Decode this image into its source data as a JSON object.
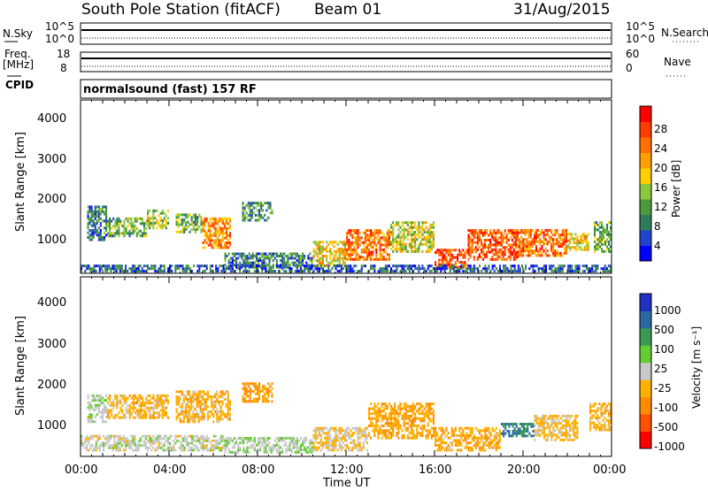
{
  "header": {
    "station": "South Pole Station (fitACF)",
    "beam": "Beam 01",
    "date": "31/Aug/2015"
  },
  "top_panels": {
    "nsky_label": "N.Sky",
    "nsky_ticks": [
      "10^5",
      "10^0"
    ],
    "nsearch_label": "N.Search",
    "nsearch_ticks": [
      "10^5",
      "10^0"
    ],
    "freq_label_1": "Freq.",
    "freq_label_2": "[MHz]",
    "freq_ticks": [
      "18",
      "8"
    ],
    "nave_label": "Nave",
    "nave_ticks": [
      "60",
      "0"
    ],
    "cpid_label": "CPID",
    "cpid_text": "normalsound (fast) 157 RF"
  },
  "chart_data": [
    {
      "type": "heatmap",
      "name": "power",
      "xlabel": "Time UT",
      "ylabel": "Slant Range [km]",
      "yticks": [
        "4000",
        "3000",
        "2000",
        "1000"
      ],
      "ylim": [
        180,
        4600
      ],
      "colorbar": {
        "label": "Power [dB]",
        "ticks": [
          "28",
          "24",
          "20",
          "16",
          "12",
          "8",
          "4"
        ],
        "range": [
          0,
          32
        ],
        "colors": [
          "#0000ff",
          "#2244cc",
          "#2e7d5a",
          "#4b9a3c",
          "#8cc83c",
          "#ffd000",
          "#ffa000",
          "#ff7000",
          "#ff3c00",
          "#ff0000"
        ]
      },
      "regions": [
        {
          "t0": 0.3,
          "t1": 1.2,
          "r0": 1000,
          "r1": 1900,
          "v": 8
        },
        {
          "t0": 1.2,
          "t1": 3.0,
          "r0": 1100,
          "r1": 1600,
          "v": 12
        },
        {
          "t0": 3.0,
          "t1": 4.0,
          "r0": 1300,
          "r1": 1800,
          "v": 14
        },
        {
          "t0": 4.3,
          "t1": 5.5,
          "r0": 1200,
          "r1": 1700,
          "v": 12
        },
        {
          "t0": 5.5,
          "t1": 6.8,
          "r0": 800,
          "r1": 1600,
          "v": 22
        },
        {
          "t0": 7.3,
          "t1": 8.7,
          "r0": 1500,
          "r1": 2000,
          "v": 10
        },
        {
          "t0": 6.5,
          "t1": 10.5,
          "r0": 300,
          "r1": 700,
          "v": 8
        },
        {
          "t0": 10.5,
          "t1": 12.0,
          "r0": 350,
          "r1": 1000,
          "v": 18
        },
        {
          "t0": 12.0,
          "t1": 14.0,
          "r0": 500,
          "r1": 1300,
          "v": 24
        },
        {
          "t0": 14.0,
          "t1": 16.0,
          "r0": 700,
          "r1": 1500,
          "v": 16
        },
        {
          "t0": 16.0,
          "t1": 17.5,
          "r0": 300,
          "r1": 800,
          "v": 26
        },
        {
          "t0": 17.5,
          "t1": 19.8,
          "r0": 500,
          "r1": 1300,
          "v": 26
        },
        {
          "t0": 19.8,
          "t1": 22.0,
          "r0": 600,
          "r1": 1300,
          "v": 24
        },
        {
          "t0": 22.0,
          "t1": 23.0,
          "r0": 750,
          "r1": 1200,
          "v": 18
        },
        {
          "t0": 23.2,
          "t1": 24.0,
          "r0": 700,
          "r1": 1500,
          "v": 12
        },
        {
          "t0": 0.0,
          "t1": 24.0,
          "r0": 200,
          "r1": 400,
          "v": 6
        }
      ]
    },
    {
      "type": "heatmap",
      "name": "velocity",
      "xlabel": "Time UT",
      "ylabel": "Slant Range [km]",
      "yticks": [
        "4000",
        "3000",
        "2000",
        "1000"
      ],
      "ylim": [
        180,
        4600
      ],
      "xticks": [
        "00:00",
        "04:00",
        "08:00",
        "12:00",
        "16:00",
        "20:00",
        "00:00"
      ],
      "colorbar": {
        "label": "Velocity [m s⁻¹]",
        "ticks": [
          "1000",
          "500",
          "100",
          "25",
          "-25",
          "-100",
          "-500",
          "-1000"
        ],
        "range": [
          -1200,
          1200
        ],
        "colors": [
          "#ff0000",
          "#ff5000",
          "#ff8c00",
          "#ffb000",
          "#c8c8c8",
          "#66cc33",
          "#3a9a55",
          "#2a6aa0",
          "#2030c0"
        ]
      },
      "regions": [
        {
          "t0": 0.3,
          "t1": 1.2,
          "r0": 1000,
          "r1": 1700,
          "v": 60
        },
        {
          "t0": 1.2,
          "t1": 4.0,
          "r0": 1100,
          "r1": 1700,
          "v": -250
        },
        {
          "t0": 4.3,
          "t1": 6.8,
          "r0": 1000,
          "r1": 1800,
          "v": -280
        },
        {
          "t0": 7.3,
          "t1": 8.7,
          "r0": 1500,
          "r1": 2000,
          "v": -400
        },
        {
          "t0": 0.0,
          "t1": 6.5,
          "r0": 300,
          "r1": 700,
          "v": 10
        },
        {
          "t0": 6.5,
          "t1": 10.5,
          "r0": 250,
          "r1": 650,
          "v": 80
        },
        {
          "t0": 10.5,
          "t1": 13.0,
          "r0": 300,
          "r1": 900,
          "v": -150
        },
        {
          "t0": 13.0,
          "t1": 16.0,
          "r0": 600,
          "r1": 1500,
          "v": -350
        },
        {
          "t0": 16.0,
          "t1": 19.0,
          "r0": 300,
          "r1": 900,
          "v": -300
        },
        {
          "t0": 19.0,
          "t1": 20.5,
          "r0": 650,
          "r1": 1000,
          "v": 700
        },
        {
          "t0": 20.5,
          "t1": 22.5,
          "r0": 550,
          "r1": 1200,
          "v": -200
        },
        {
          "t0": 23.0,
          "t1": 24.0,
          "r0": 800,
          "r1": 1500,
          "v": -250
        }
      ]
    }
  ]
}
